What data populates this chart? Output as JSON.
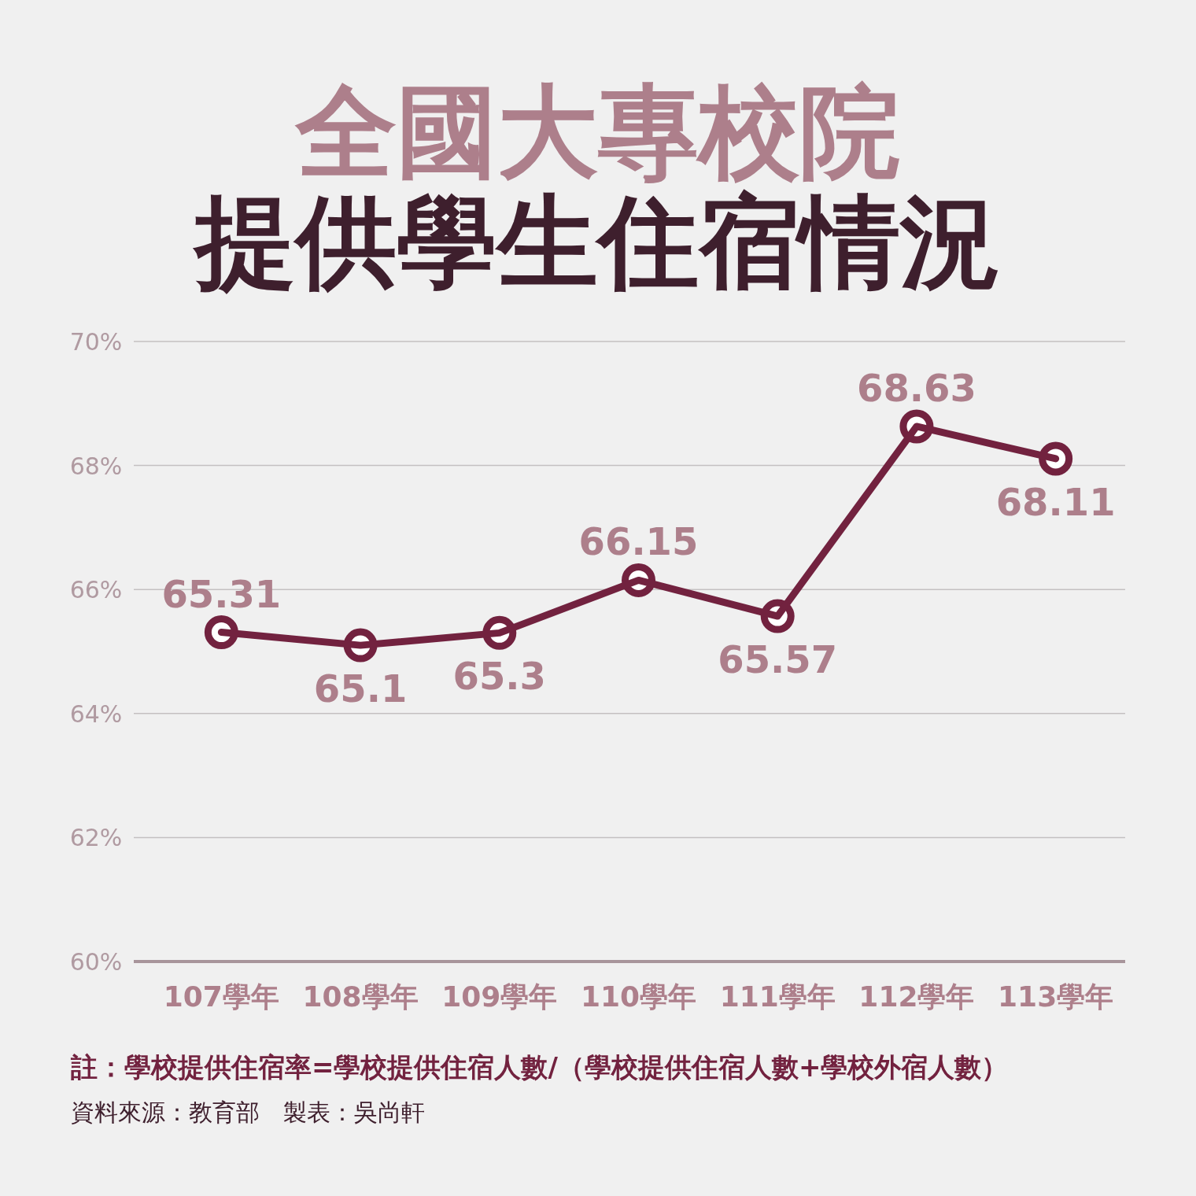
{
  "chart_data": {
    "type": "line",
    "title": "全國大專校院",
    "subtitle": "提供學生住宿情況",
    "categories": [
      "107學年",
      "108學年",
      "109學年",
      "110學年",
      "111學年",
      "112學年",
      "113學年"
    ],
    "series": [
      {
        "color": "#72223f",
        "values": [
          65.31,
          65.1,
          65.3,
          66.15,
          65.57,
          68.63,
          68.11
        ]
      }
    ],
    "ylim": [
      60,
      70
    ],
    "yticks": [
      {
        "value": 60,
        "label": "60%"
      },
      {
        "value": 62,
        "label": "62%"
      },
      {
        "value": 64,
        "label": "64%"
      },
      {
        "value": 66,
        "label": "66%"
      },
      {
        "value": 68,
        "label": "68%"
      },
      {
        "value": 70,
        "label": "70%"
      }
    ],
    "grid": "y",
    "marker": "circle",
    "line_style": "solid",
    "data_labels": true,
    "annotations": [
      "註：學校提供住宿率=學校提供住宿人數/（學校提供住宿人數+學校外宿人數）",
      "資料來源：教育部　製表：吳尚軒"
    ]
  }
}
